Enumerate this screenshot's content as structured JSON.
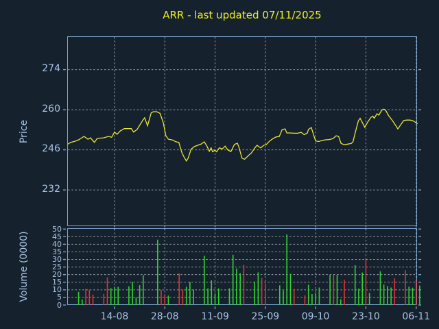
{
  "window": {
    "background": "#16212e"
  },
  "title": {
    "text": "ARR - last updated 07/11/2025",
    "color": "#f0ee22"
  },
  "price_axis": {
    "label": "Price",
    "ticks": [
      274,
      260,
      246,
      232
    ],
    "color": "#a9c6e4"
  },
  "volume_axis": {
    "label": "Volume (0000)",
    "ticks": [
      50,
      45,
      40,
      35,
      30,
      25,
      20,
      15,
      10,
      5,
      0
    ],
    "color": "#a9c6e4"
  },
  "x_axis": {
    "tick_labels": [
      "14-08",
      "28-08",
      "11-09",
      "25-09",
      "09-10",
      "23-10",
      "06-11"
    ],
    "tick_days": [
      13,
      27,
      41,
      55,
      69,
      83,
      97
    ],
    "color": "#a9c6e4"
  },
  "colors": {
    "background": "#16212e",
    "frame": "#7ea7cf",
    "grid": "#aeb6bf",
    "tick_label": "#a9c6e4",
    "title": "#f0ee22",
    "price_line": "#e9e637",
    "volume_up": "#2fd32f",
    "volume_down": "#e03232"
  },
  "chart_data": [
    {
      "type": "line",
      "name": "price-chart",
      "title": "ARR - last updated 07/11/2025",
      "ylabel": "Price",
      "x_unit": "calendar days since 2025-08-01",
      "xlim": [
        0,
        97.4
      ],
      "ylim": [
        219.6,
        285.6
      ],
      "yticks": [
        274,
        260,
        246,
        232
      ],
      "grid": true,
      "series": [
        {
          "name": "ARR close price",
          "color": "#e9e637",
          "points": [
            [
              0,
              248.0
            ],
            [
              0.8,
              248.6
            ],
            [
              2,
              249.0
            ],
            [
              3,
              249.5
            ],
            [
              4.5,
              250.7
            ],
            [
              5.6,
              249.7
            ],
            [
              6.3,
              250.2
            ],
            [
              7.4,
              248.6
            ],
            [
              8.2,
              250.0
            ],
            [
              10,
              250.2
            ],
            [
              11.3,
              250.7
            ],
            [
              12.2,
              250.4
            ],
            [
              13,
              252.2
            ],
            [
              13.7,
              251.4
            ],
            [
              14.6,
              252.6
            ],
            [
              15.7,
              253.4
            ],
            [
              17.7,
              253.4
            ],
            [
              18.3,
              252.2
            ],
            [
              19.3,
              253.1
            ],
            [
              20.9,
              256.4
            ],
            [
              21.4,
              257.2
            ],
            [
              22.2,
              254.4
            ],
            [
              23.2,
              258.9
            ],
            [
              23.8,
              259.3
            ],
            [
              24.8,
              259.3
            ],
            [
              25.7,
              258.7
            ],
            [
              26.6,
              255.3
            ],
            [
              27.3,
              250.9
            ],
            [
              28,
              249.7
            ],
            [
              29.2,
              249.4
            ],
            [
              30.1,
              248.8
            ],
            [
              30.9,
              248.6
            ],
            [
              31.7,
              245.2
            ],
            [
              32.4,
              243.4
            ],
            [
              33,
              242.1
            ],
            [
              33.5,
              243.1
            ],
            [
              34.3,
              246.2
            ],
            [
              35.2,
              247.1
            ],
            [
              36.2,
              247.6
            ],
            [
              37.1,
              248.0
            ],
            [
              38,
              248.8
            ],
            [
              38.7,
              247.4
            ],
            [
              39.4,
              245.5
            ],
            [
              39.9,
              246.7
            ],
            [
              40.3,
              245.3
            ],
            [
              41,
              245.9
            ],
            [
              41.4,
              245.3
            ],
            [
              42.2,
              246.7
            ],
            [
              43,
              246.3
            ],
            [
              43.8,
              247.3
            ],
            [
              44.6,
              245.9
            ],
            [
              45.4,
              245.4
            ],
            [
              46.4,
              247.9
            ],
            [
              47.2,
              248.3
            ],
            [
              47.6,
              247.1
            ],
            [
              48.5,
              243.1
            ],
            [
              49.2,
              242.7
            ],
            [
              50.2,
              243.9
            ],
            [
              51.1,
              244.9
            ],
            [
              52.1,
              246.7
            ],
            [
              52.7,
              247.6
            ],
            [
              53.2,
              247.1
            ],
            [
              53.7,
              246.7
            ],
            [
              54.6,
              247.6
            ],
            [
              55.3,
              247.9
            ],
            [
              56.2,
              249.1
            ],
            [
              57.1,
              249.9
            ],
            [
              58,
              250.5
            ],
            [
              58.9,
              250.7
            ],
            [
              59.7,
              253.1
            ],
            [
              60.5,
              253.3
            ],
            [
              61,
              251.9
            ],
            [
              62,
              251.9
            ],
            [
              63,
              251.8
            ],
            [
              64,
              251.8
            ],
            [
              65,
              252.1
            ],
            [
              65.8,
              251.3
            ],
            [
              66.7,
              251.9
            ],
            [
              67,
              253.1
            ],
            [
              67.8,
              253.8
            ],
            [
              69,
              249.1
            ],
            [
              69.9,
              248.9
            ],
            [
              70.9,
              249.3
            ],
            [
              71.8,
              249.5
            ],
            [
              72.8,
              249.6
            ],
            [
              73.8,
              249.9
            ],
            [
              74.7,
              250.9
            ],
            [
              75.4,
              250.7
            ],
            [
              76.1,
              248.2
            ],
            [
              77,
              247.8
            ],
            [
              77.9,
              248.0
            ],
            [
              78.9,
              248.2
            ],
            [
              79.4,
              248.8
            ],
            [
              80.1,
              252.3
            ],
            [
              80.9,
              256.1
            ],
            [
              81.4,
              257.0
            ],
            [
              82.7,
              253.9
            ],
            [
              83.6,
              255.9
            ],
            [
              84.4,
              257.3
            ],
            [
              84.9,
              257.8
            ],
            [
              85.3,
              257.0
            ],
            [
              86.1,
              258.6
            ],
            [
              86.6,
              258.1
            ],
            [
              87.4,
              259.8
            ],
            [
              88,
              260.2
            ],
            [
              88.5,
              259.8
            ],
            [
              89.3,
              258.0
            ],
            [
              90.3,
              256.4
            ],
            [
              91,
              255.1
            ],
            [
              91.9,
              253.3
            ],
            [
              92.6,
              254.6
            ],
            [
              93.5,
              256.2
            ],
            [
              94.3,
              256.4
            ],
            [
              95.3,
              256.4
            ],
            [
              96,
              256.2
            ],
            [
              96.8,
              255.6
            ],
            [
              97.4,
              255.1
            ]
          ]
        }
      ]
    },
    {
      "type": "bar",
      "name": "volume-chart",
      "ylabel": "Volume (0000)",
      "x_unit": "calendar days since 2025-08-01",
      "xlim": [
        0,
        97.4
      ],
      "ylim": [
        0,
        50
      ],
      "yticks": [
        50,
        45,
        40,
        35,
        30,
        25,
        20,
        15,
        10,
        5,
        0
      ],
      "grid": true,
      "bar_colors": {
        "up": "#2fd32f",
        "down": "#e03232"
      },
      "bars": [
        [
          3,
          8.6,
          "up"
        ],
        [
          4,
          3.6,
          "up"
        ],
        [
          5,
          10.7,
          "down"
        ],
        [
          6,
          10.1,
          "down"
        ],
        [
          7,
          6.9,
          "down"
        ],
        [
          10,
          7.2,
          "down"
        ],
        [
          11,
          18.3,
          "down"
        ],
        [
          12,
          11.1,
          "up"
        ],
        [
          13,
          11.9,
          "up"
        ],
        [
          14,
          11.9,
          "up"
        ],
        [
          17,
          12.3,
          "up"
        ],
        [
          18,
          15.2,
          "up"
        ],
        [
          19,
          4.9,
          "up"
        ],
        [
          20,
          13.0,
          "up"
        ],
        [
          21,
          19.6,
          "up"
        ],
        [
          25,
          43.0,
          "up"
        ],
        [
          26,
          9.9,
          "down"
        ],
        [
          27,
          6.2,
          "down"
        ],
        [
          28,
          6.2,
          "up"
        ],
        [
          31,
          20.9,
          "down"
        ],
        [
          32,
          10.1,
          "down"
        ],
        [
          33,
          12.0,
          "up"
        ],
        [
          34,
          15.3,
          "up"
        ],
        [
          35,
          10.2,
          "up"
        ],
        [
          38,
          32.5,
          "up"
        ],
        [
          39,
          10.9,
          "up"
        ],
        [
          40,
          16.2,
          "up"
        ],
        [
          41,
          7.5,
          "up"
        ],
        [
          42,
          10.9,
          "up"
        ],
        [
          45,
          11.0,
          "up"
        ],
        [
          46,
          33.0,
          "up"
        ],
        [
          47,
          24.0,
          "up"
        ],
        [
          48,
          21.0,
          "up"
        ],
        [
          49,
          26.5,
          "down"
        ],
        [
          52,
          15.5,
          "up"
        ],
        [
          53,
          21.5,
          "up"
        ],
        [
          54,
          17.9,
          "down"
        ],
        [
          55,
          13.6,
          "down"
        ],
        [
          59,
          12.9,
          "up"
        ],
        [
          60,
          9.5,
          "up"
        ],
        [
          61,
          46.5,
          "up"
        ],
        [
          62,
          20.5,
          "up"
        ],
        [
          63,
          10.6,
          "down"
        ],
        [
          66,
          6.4,
          "down"
        ],
        [
          67,
          13.3,
          "up"
        ],
        [
          68,
          7.2,
          "up"
        ],
        [
          69,
          7.8,
          "up"
        ],
        [
          70,
          11.5,
          "up"
        ],
        [
          73,
          19.8,
          "up"
        ],
        [
          74,
          19.8,
          "down"
        ],
        [
          75,
          19.8,
          "up"
        ],
        [
          76,
          3.7,
          "up"
        ],
        [
          77,
          16.5,
          "down"
        ],
        [
          80,
          26.2,
          "up"
        ],
        [
          81,
          10.8,
          "up"
        ],
        [
          82,
          21.4,
          "up"
        ],
        [
          83,
          30.0,
          "down"
        ],
        [
          84,
          8.0,
          "up"
        ],
        [
          87,
          22.2,
          "up"
        ],
        [
          88,
          13.5,
          "up"
        ],
        [
          89,
          12.4,
          "up"
        ],
        [
          90,
          11.5,
          "up"
        ],
        [
          91,
          17.5,
          "down"
        ],
        [
          94,
          22.9,
          "down"
        ],
        [
          95,
          12.1,
          "up"
        ],
        [
          96,
          11.4,
          "up"
        ],
        [
          97,
          16.2,
          "down"
        ],
        [
          98,
          12.8,
          "up"
        ]
      ]
    }
  ]
}
